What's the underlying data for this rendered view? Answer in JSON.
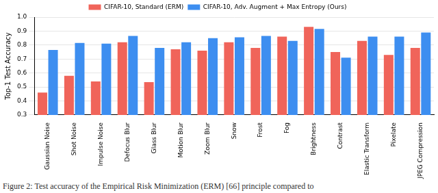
{
  "chart_data": {
    "type": "bar",
    "y_label": "Top-1 Test Accuracy",
    "categories": [
      "Gaussian Noise",
      "Shot Noise",
      "Impulse Noise",
      "Defocus Blur",
      "Glass Blur",
      "Motion Blur",
      "Zoom Blur",
      "Snow",
      "Frost",
      "Fog",
      "Brightness",
      "Contrast",
      "Elastic Transform",
      "Pixelate",
      "JPEG Compression"
    ],
    "series": [
      {
        "name": "CIFAR-10, Standard (ERM)",
        "color": "#f0645a",
        "values": [
          0.46,
          0.58,
          0.54,
          0.82,
          0.535,
          0.77,
          0.76,
          0.82,
          0.78,
          0.86,
          0.93,
          0.75,
          0.83,
          0.73,
          0.78
        ]
      },
      {
        "name": "CIFAR-10, Adv. Augment + Max Entropy (Ours)",
        "color": "#3d8ef0",
        "values": [
          0.765,
          0.815,
          0.81,
          0.865,
          0.78,
          0.82,
          0.85,
          0.855,
          0.865,
          0.83,
          0.915,
          0.71,
          0.86,
          0.86,
          0.89
        ]
      }
    ],
    "ylim": [
      0.3,
      1.0
    ],
    "yticks": [
      0.3,
      0.4,
      0.5,
      0.6,
      0.7,
      0.8,
      0.9,
      {
        "value": 1.0,
        "label": "1.0"
      }
    ],
    "grid": true,
    "legend": "top",
    "annotations": [
      "Figure 2: Test accuracy of the Empirical Risk Minimization (ERM) [66] principle compared to"
    ]
  }
}
